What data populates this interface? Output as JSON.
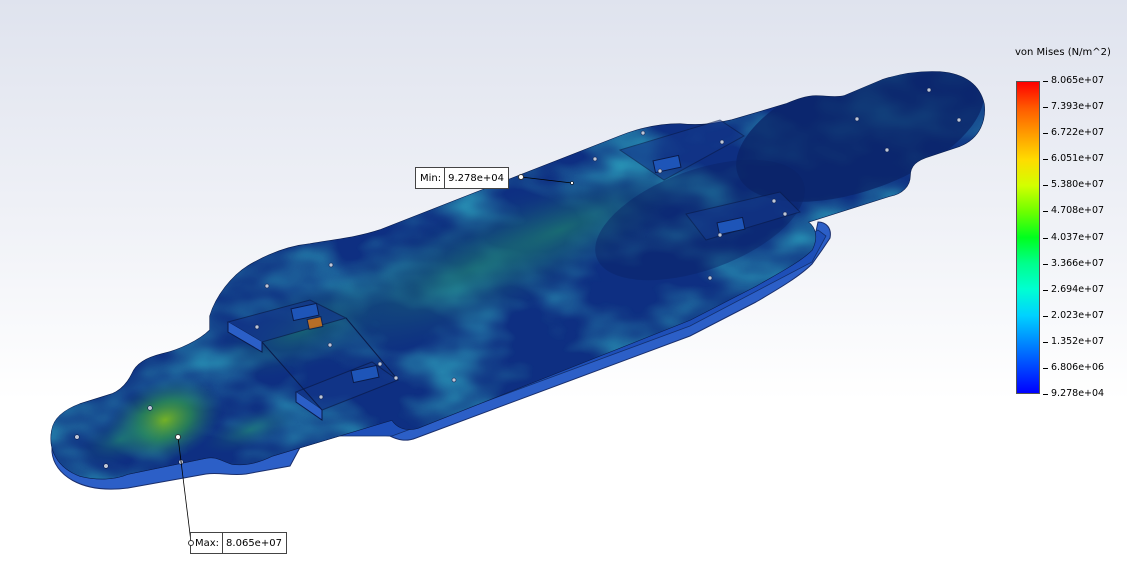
{
  "legend": {
    "title": "von Mises (N/m^2)",
    "values": [
      "8.065e+07",
      "7.393e+07",
      "6.722e+07",
      "6.051e+07",
      "5.380e+07",
      "4.708e+07",
      "4.037e+07",
      "3.366e+07",
      "2.694e+07",
      "2.023e+07",
      "1.352e+07",
      "6.806e+06",
      "9.278e+04"
    ],
    "colors": [
      "#ff0000",
      "#ff5a00",
      "#ff9c00",
      "#ffdc00",
      "#d2ff00",
      "#6eff00",
      "#00ff1e",
      "#00ff8c",
      "#00ffd2",
      "#00d2ff",
      "#008cff",
      "#0046ff",
      "#0000ff"
    ]
  },
  "probes": {
    "min": {
      "name": "Min:",
      "value": "9.278e+04"
    },
    "max": {
      "name": "Max:",
      "value": "8.065e+07"
    }
  },
  "model": {
    "top_color": "#0d3a82",
    "edge_color": "#1d4fb0",
    "side_color": "#2a62c9"
  }
}
